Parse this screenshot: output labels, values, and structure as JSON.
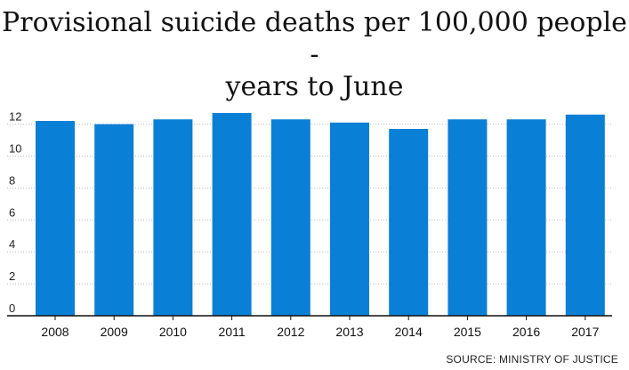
{
  "chart_data": {
    "type": "bar",
    "title": "Provisional suicide deaths per 100,000 people - years to June",
    "categories": [
      "2008",
      "2009",
      "2010",
      "2011",
      "2012",
      "2013",
      "2014",
      "2015",
      "2016",
      "2017"
    ],
    "values": [
      12.2,
      12.0,
      12.3,
      12.7,
      12.3,
      12.1,
      11.7,
      12.3,
      12.3,
      12.6
    ],
    "ylim": [
      0,
      13
    ],
    "yticks": [
      0,
      2,
      4,
      6,
      8,
      10,
      12
    ],
    "grid": true,
    "bar_color": "#0a7fd6",
    "grid_color": "#bbbbbb",
    "source": "SOURCE: MINISTRY OF JUSTICE"
  }
}
